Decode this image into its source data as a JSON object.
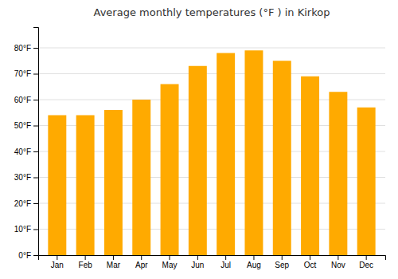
{
  "chart_data": {
    "type": "bar",
    "title": "Average monthly temperatures (°F ) in Kirkop",
    "categories": [
      "Jan",
      "Feb",
      "Mar",
      "Apr",
      "May",
      "Jun",
      "Jul",
      "Aug",
      "Sep",
      "Oct",
      "Nov",
      "Dec"
    ],
    "values": [
      54,
      54,
      56,
      60,
      66,
      73,
      78,
      79,
      75,
      69,
      63,
      57
    ],
    "color": "#FFAA00",
    "ylim": [
      0,
      88
    ],
    "yticks": [
      {
        "value": 0,
        "label": "0°F"
      },
      {
        "value": 10,
        "label": "10°F"
      },
      {
        "value": 20,
        "label": "20°F"
      },
      {
        "value": 30,
        "label": "30°F"
      },
      {
        "value": 40,
        "label": "40°F"
      },
      {
        "value": 50,
        "label": "50°F"
      },
      {
        "value": 60,
        "label": "60°F"
      },
      {
        "value": 70,
        "label": "70°F"
      },
      {
        "value": 80,
        "label": "80°F"
      }
    ],
    "grid": true
  }
}
